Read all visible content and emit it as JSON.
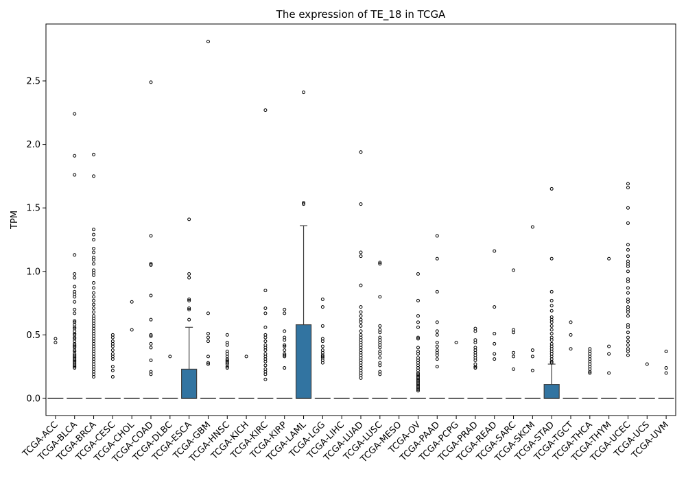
{
  "chart_data": {
    "type": "box",
    "title": "The expression of TE_18 in TCGA",
    "xlabel": "",
    "ylabel": "TPM",
    "ylim": [
      -0.14,
      2.94
    ],
    "yticks": [
      "0.0",
      "0.5",
      "1.0",
      "1.5",
      "2.0",
      "2.5"
    ],
    "ytick_values": [
      0.0,
      0.5,
      1.0,
      1.5,
      2.0,
      2.5
    ],
    "grid": false,
    "box_color": "#3274a1",
    "categories": [
      "TCGA-ACC",
      "TCGA-BLCA",
      "TCGA-BRCA",
      "TCGA-CESC",
      "TCGA-CHOL",
      "TCGA-COAD",
      "TCGA-DLBC",
      "TCGA-ESCA",
      "TCGA-GBM",
      "TCGA-HNSC",
      "TCGA-KICH",
      "TCGA-KIRC",
      "TCGA-KIRP",
      "TCGA-LAML",
      "TCGA-LGG",
      "TCGA-LIHC",
      "TCGA-LUAD",
      "TCGA-LUSC",
      "TCGA-MESO",
      "TCGA-OV",
      "TCGA-PAAD",
      "TCGA-PCPG",
      "TCGA-PRAD",
      "TCGA-READ",
      "TCGA-SARC",
      "TCGA-SKCM",
      "TCGA-STAD",
      "TCGA-TGCT",
      "TCGA-THCA",
      "TCGA-THYM",
      "TCGA-UCEC",
      "TCGA-UCS",
      "TCGA-UVM"
    ],
    "boxes": [
      {
        "q1": 0,
        "median": 0,
        "q3": 0,
        "whisker_low": 0,
        "whisker_high": 0,
        "outliers": [
          0.47,
          0.44
        ]
      },
      {
        "q1": 0,
        "median": 0,
        "q3": 0,
        "whisker_low": 0,
        "whisker_high": 0,
        "outliers": [
          2.24,
          1.91,
          1.76,
          1.13,
          0.98,
          0.95,
          0.88,
          0.84,
          0.82,
          0.8,
          0.76,
          0.7,
          0.67,
          0.61,
          0.6,
          0.58,
          0.56,
          0.55,
          0.53,
          0.51,
          0.5,
          0.48,
          0.47,
          0.45,
          0.43,
          0.42,
          0.41,
          0.4,
          0.38,
          0.37,
          0.35,
          0.34,
          0.33,
          0.32,
          0.31,
          0.3,
          0.29,
          0.28,
          0.27,
          0.26,
          0.25,
          0.24
        ]
      },
      {
        "q1": 0,
        "median": 0,
        "q3": 0,
        "whisker_low": 0,
        "whisker_high": 0,
        "outliers": [
          1.92,
          1.75,
          1.33,
          1.29,
          1.25,
          1.18,
          1.15,
          1.11,
          1.09,
          1.06,
          1.01,
          0.99,
          0.97,
          0.91,
          0.87,
          0.83,
          0.8,
          0.77,
          0.74,
          0.71,
          0.68,
          0.65,
          0.63,
          0.61,
          0.59,
          0.57,
          0.55,
          0.53,
          0.51,
          0.49,
          0.47,
          0.45,
          0.43,
          0.41,
          0.39,
          0.37,
          0.35,
          0.33,
          0.31,
          0.29,
          0.27,
          0.25,
          0.23,
          0.21,
          0.19,
          0.17
        ]
      },
      {
        "q1": 0,
        "median": 0,
        "q3": 0,
        "whisker_low": 0,
        "whisker_high": 0,
        "outliers": [
          0.5,
          0.48,
          0.45,
          0.43,
          0.41,
          0.38,
          0.35,
          0.33,
          0.31,
          0.25,
          0.22,
          0.17
        ]
      },
      {
        "q1": 0,
        "median": 0,
        "q3": 0,
        "whisker_low": 0,
        "whisker_high": 0,
        "outliers": [
          0.76,
          0.54
        ]
      },
      {
        "q1": 0,
        "median": 0,
        "q3": 0,
        "whisker_low": 0,
        "whisker_high": 0,
        "outliers": [
          2.49,
          1.28,
          1.06,
          1.05,
          0.81,
          0.62,
          0.5,
          0.49,
          0.43,
          0.4,
          0.3,
          0.21,
          0.19
        ]
      },
      {
        "q1": 0,
        "median": 0,
        "q3": 0,
        "whisker_low": 0,
        "whisker_high": 0,
        "outliers": [
          0.33
        ]
      },
      {
        "q1": 0,
        "median": 0,
        "q3": 0.23,
        "whisker_low": 0,
        "whisker_high": 0.56,
        "outliers": [
          1.41,
          0.98,
          0.95,
          0.78,
          0.77,
          0.71,
          0.7,
          0.62
        ]
      },
      {
        "q1": 0,
        "median": 0,
        "q3": 0,
        "whisker_low": 0,
        "whisker_high": 0,
        "outliers": [
          2.81,
          0.67,
          0.51,
          0.48,
          0.45,
          0.33,
          0.28,
          0.27
        ]
      },
      {
        "q1": 0,
        "median": 0,
        "q3": 0,
        "whisker_low": 0,
        "whisker_high": 0,
        "outliers": [
          0.5,
          0.44,
          0.42,
          0.37,
          0.35,
          0.33,
          0.31,
          0.3,
          0.29,
          0.28,
          0.27,
          0.25,
          0.24
        ]
      },
      {
        "q1": 0,
        "median": 0,
        "q3": 0,
        "whisker_low": 0,
        "whisker_high": 0,
        "outliers": [
          0.33
        ]
      },
      {
        "q1": 0,
        "median": 0,
        "q3": 0,
        "whisker_low": 0,
        "whisker_high": 0,
        "outliers": [
          2.27,
          0.85,
          0.71,
          0.67,
          0.56,
          0.5,
          0.48,
          0.45,
          0.42,
          0.4,
          0.38,
          0.35,
          0.33,
          0.31,
          0.29,
          0.26,
          0.23,
          0.21,
          0.19,
          0.15
        ]
      },
      {
        "q1": 0,
        "median": 0,
        "q3": 0,
        "whisker_low": 0,
        "whisker_high": 0,
        "outliers": [
          0.7,
          0.67,
          0.53,
          0.48,
          0.46,
          0.42,
          0.41,
          0.38,
          0.35,
          0.34,
          0.33,
          0.24
        ]
      },
      {
        "q1": 0,
        "median": 0,
        "q3": 0.58,
        "whisker_low": 0,
        "whisker_high": 1.36,
        "outliers": [
          2.41,
          1.54,
          1.53
        ]
      },
      {
        "q1": 0,
        "median": 0,
        "q3": 0,
        "whisker_low": 0,
        "whisker_high": 0,
        "outliers": [
          0.78,
          0.72,
          0.57,
          0.47,
          0.45,
          0.41,
          0.38,
          0.36,
          0.34,
          0.33,
          0.32,
          0.3,
          0.28
        ]
      },
      {
        "q1": 0,
        "median": 0,
        "q3": 0,
        "whisker_low": 0,
        "whisker_high": 0,
        "outliers": []
      },
      {
        "q1": 0,
        "median": 0,
        "q3": 0,
        "whisker_low": 0,
        "whisker_high": 0,
        "outliers": [
          1.94,
          1.53,
          1.15,
          1.12,
          0.89,
          0.72,
          0.68,
          0.65,
          0.62,
          0.6,
          0.57,
          0.53,
          0.5,
          0.48,
          0.46,
          0.44,
          0.42,
          0.4,
          0.38,
          0.36,
          0.34,
          0.32,
          0.3,
          0.28,
          0.26,
          0.24,
          0.22,
          0.2,
          0.18,
          0.16
        ]
      },
      {
        "q1": 0,
        "median": 0,
        "q3": 0,
        "whisker_low": 0,
        "whisker_high": 0,
        "outliers": [
          1.07,
          1.06,
          0.8,
          0.57,
          0.54,
          0.52,
          0.48,
          0.46,
          0.44,
          0.42,
          0.4,
          0.37,
          0.35,
          0.32,
          0.28,
          0.26,
          0.21,
          0.19
        ]
      },
      {
        "q1": 0,
        "median": 0,
        "q3": 0,
        "whisker_low": 0,
        "whisker_high": 0,
        "outliers": []
      },
      {
        "q1": 0,
        "median": 0,
        "q3": 0,
        "whisker_low": 0,
        "whisker_high": 0,
        "outliers": [
          0.98,
          0.77,
          0.65,
          0.6,
          0.56,
          0.48,
          0.47,
          0.4,
          0.37,
          0.35,
          0.32,
          0.3,
          0.28,
          0.26,
          0.24,
          0.22,
          0.2,
          0.19,
          0.18,
          0.17,
          0.16,
          0.15,
          0.14,
          0.13,
          0.12,
          0.11,
          0.1,
          0.09,
          0.08,
          0.07,
          0.06
        ]
      },
      {
        "q1": 0,
        "median": 0,
        "q3": 0,
        "whisker_low": 0,
        "whisker_high": 0,
        "outliers": [
          1.28,
          1.1,
          0.84,
          0.6,
          0.53,
          0.5,
          0.44,
          0.41,
          0.38,
          0.36,
          0.34,
          0.31,
          0.25
        ]
      },
      {
        "q1": 0,
        "median": 0,
        "q3": 0,
        "whisker_low": 0,
        "whisker_high": 0,
        "outliers": [
          0.44
        ]
      },
      {
        "q1": 0,
        "median": 0,
        "q3": 0,
        "whisker_low": 0,
        "whisker_high": 0,
        "outliers": [
          0.55,
          0.53,
          0.46,
          0.44,
          0.4,
          0.38,
          0.36,
          0.34,
          0.32,
          0.3,
          0.27,
          0.25,
          0.24
        ]
      },
      {
        "q1": 0,
        "median": 0,
        "q3": 0,
        "whisker_low": 0,
        "whisker_high": 0,
        "outliers": [
          1.16,
          0.72,
          0.51,
          0.43,
          0.35,
          0.31
        ]
      },
      {
        "q1": 0,
        "median": 0,
        "q3": 0,
        "whisker_low": 0,
        "whisker_high": 0,
        "outliers": [
          1.01,
          0.54,
          0.52,
          0.36,
          0.33,
          0.23
        ]
      },
      {
        "q1": 0,
        "median": 0,
        "q3": 0,
        "whisker_low": 0,
        "whisker_high": 0,
        "outliers": [
          1.35,
          0.38,
          0.33,
          0.22
        ]
      },
      {
        "q1": 0,
        "median": 0,
        "q3": 0.11,
        "whisker_low": 0,
        "whisker_high": 0.27,
        "outliers": [
          1.65,
          1.1,
          0.84,
          0.77,
          0.73,
          0.69,
          0.64,
          0.62,
          0.6,
          0.57,
          0.54,
          0.51,
          0.48,
          0.46,
          0.43,
          0.41,
          0.39,
          0.37,
          0.35,
          0.33,
          0.31,
          0.29,
          0.28
        ]
      },
      {
        "q1": 0,
        "median": 0,
        "q3": 0,
        "whisker_low": 0,
        "whisker_high": 0,
        "outliers": [
          0.6,
          0.5,
          0.39
        ]
      },
      {
        "q1": 0,
        "median": 0,
        "q3": 0,
        "whisker_low": 0,
        "whisker_high": 0,
        "outliers": [
          0.39,
          0.37,
          0.35,
          0.33,
          0.31,
          0.29,
          0.27,
          0.25,
          0.23,
          0.21,
          0.2
        ]
      },
      {
        "q1": 0,
        "median": 0,
        "q3": 0,
        "whisker_low": 0,
        "whisker_high": 0,
        "outliers": [
          1.1,
          0.41,
          0.35,
          0.2
        ]
      },
      {
        "q1": 0,
        "median": 0,
        "q3": 0,
        "whisker_low": 0,
        "whisker_high": 0,
        "outliers": [
          1.69,
          1.66,
          1.5,
          1.38,
          1.21,
          1.17,
          1.12,
          1.08,
          1.06,
          1.04,
          1.0,
          0.94,
          0.92,
          0.87,
          0.83,
          0.78,
          0.76,
          0.72,
          0.7,
          0.68,
          0.65,
          0.58,
          0.56,
          0.52,
          0.48,
          0.45,
          0.42,
          0.39,
          0.37,
          0.34
        ]
      },
      {
        "q1": 0,
        "median": 0,
        "q3": 0,
        "whisker_low": 0,
        "whisker_high": 0,
        "outliers": [
          0.27
        ]
      },
      {
        "q1": 0,
        "median": 0,
        "q3": 0,
        "whisker_low": 0,
        "whisker_high": 0,
        "outliers": [
          0.37,
          0.24,
          0.2
        ]
      }
    ]
  }
}
